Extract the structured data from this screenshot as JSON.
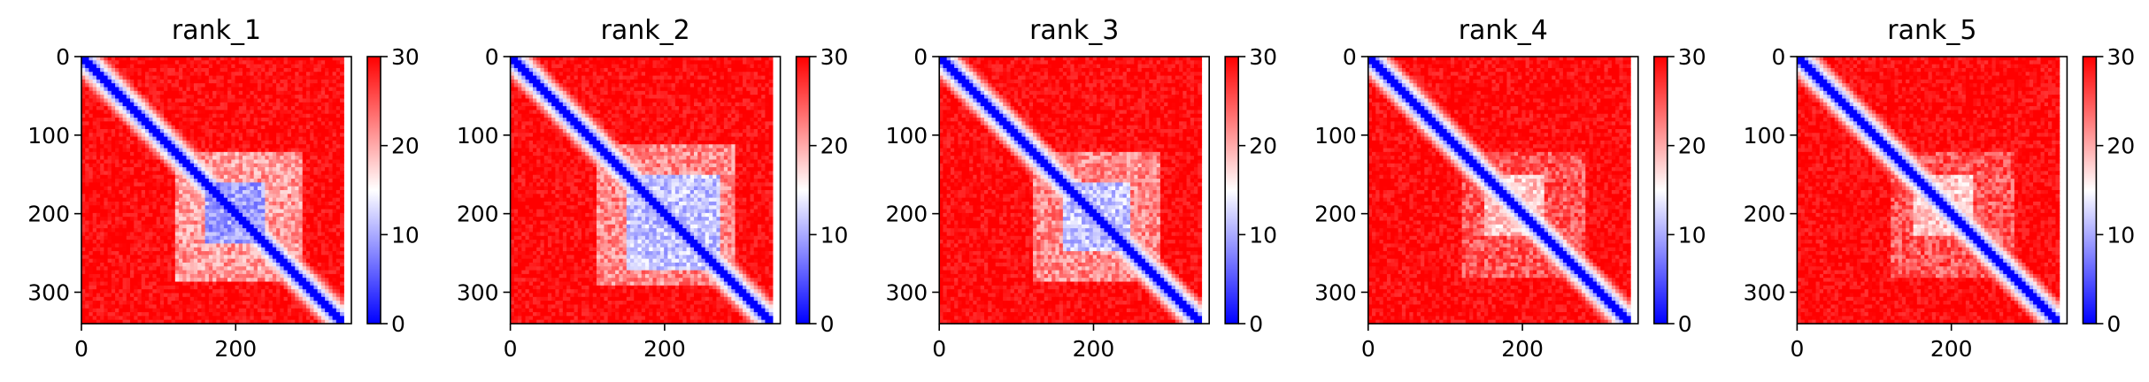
{
  "chart_data": [
    {
      "type": "heatmap",
      "title": "rank_1",
      "x_ticks": [
        0,
        200
      ],
      "y_ticks": [
        0,
        100,
        200,
        300
      ],
      "xlim": [
        0,
        350
      ],
      "ylim": [
        340,
        0
      ],
      "colorbar": {
        "ticks": [
          0,
          10,
          20,
          30
        ],
        "range": [
          0,
          30
        ],
        "colormap": "bwr"
      },
      "pattern": {
        "block_range": [
          120,
          285
        ],
        "core_range": [
          160,
          240
        ],
        "block_value": 17,
        "core_value": 6
      }
    },
    {
      "type": "heatmap",
      "title": "rank_2",
      "x_ticks": [
        0,
        200
      ],
      "y_ticks": [
        0,
        100,
        200,
        300
      ],
      "xlim": [
        0,
        350
      ],
      "ylim": [
        340,
        0
      ],
      "colorbar": {
        "ticks": [
          0,
          10,
          20,
          30
        ],
        "range": [
          0,
          30
        ],
        "colormap": "bwr"
      },
      "pattern": {
        "block_range": [
          110,
          290
        ],
        "core_range": [
          150,
          270
        ],
        "block_value": 18,
        "core_value": 8
      }
    },
    {
      "type": "heatmap",
      "title": "rank_3",
      "x_ticks": [
        0,
        200
      ],
      "y_ticks": [
        0,
        100,
        200,
        300
      ],
      "xlim": [
        0,
        350
      ],
      "ylim": [
        340,
        0
      ],
      "colorbar": {
        "ticks": [
          0,
          10,
          20,
          30
        ],
        "range": [
          0,
          30
        ],
        "colormap": "bwr"
      },
      "pattern": {
        "block_range": [
          120,
          285
        ],
        "core_range": [
          160,
          250
        ],
        "block_value": 18,
        "core_value": 8
      }
    },
    {
      "type": "heatmap",
      "title": "rank_4",
      "x_ticks": [
        0,
        200
      ],
      "y_ticks": [
        0,
        100,
        200,
        300
      ],
      "xlim": [
        0,
        350
      ],
      "ylim": [
        340,
        0
      ],
      "colorbar": {
        "ticks": [
          0,
          10,
          20,
          30
        ],
        "range": [
          0,
          30
        ],
        "colormap": "bwr"
      },
      "pattern": {
        "block_range": [
          120,
          280
        ],
        "core_range": [
          150,
          230
        ],
        "block_value": 21,
        "core_value": 15
      }
    },
    {
      "type": "heatmap",
      "title": "rank_5",
      "x_ticks": [
        0,
        200
      ],
      "y_ticks": [
        0,
        100,
        200,
        300
      ],
      "xlim": [
        0,
        350
      ],
      "ylim": [
        340,
        0
      ],
      "colorbar": {
        "ticks": [
          0,
          10,
          20,
          30
        ],
        "range": [
          0,
          30
        ],
        "colormap": "bwr"
      },
      "pattern": {
        "block_range": [
          120,
          280
        ],
        "core_range": [
          150,
          230
        ],
        "block_value": 21,
        "core_value": 15
      }
    }
  ]
}
